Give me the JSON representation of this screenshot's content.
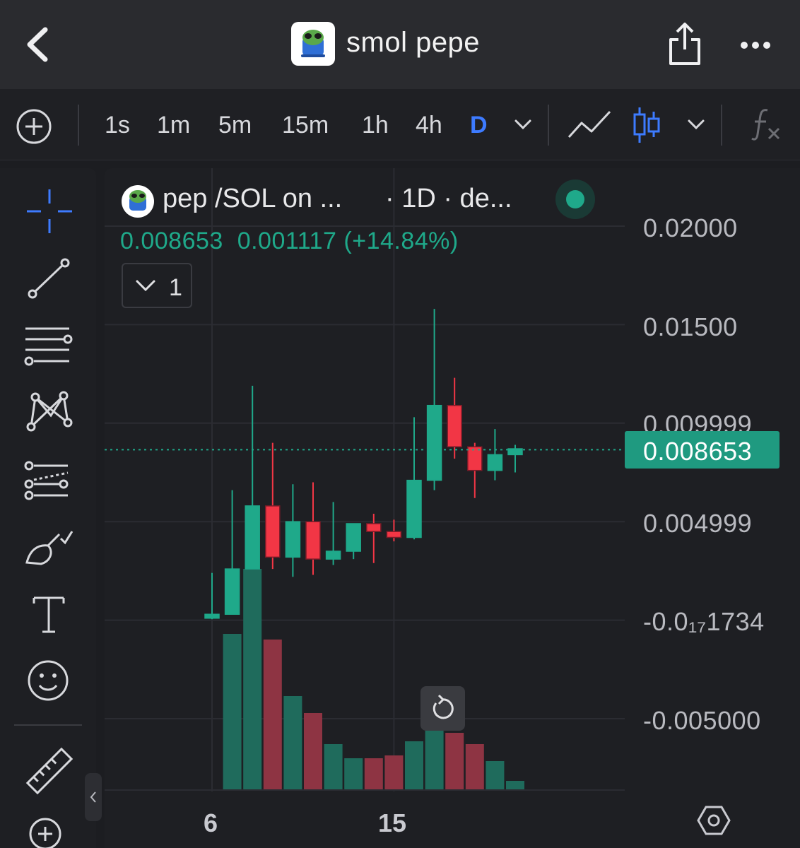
{
  "header": {
    "title": "smol pepe",
    "icons": [
      "back-chevron-icon",
      "token-logo",
      "share-icon",
      "more-icon"
    ]
  },
  "toolbar": {
    "timeframes": [
      "1s",
      "1m",
      "5m",
      "15m",
      "1h",
      "4h",
      "D"
    ],
    "active_timeframe": "D",
    "icons": [
      "add-circle-icon",
      "chevron-down-icon",
      "line-chart-icon",
      "candlestick-icon",
      "chevron-down-icon",
      "function-icon"
    ],
    "active_color": "#3d7bff"
  },
  "left_tools": [
    "crosshair-icon",
    "trend-line-icon",
    "fib-retracement-icon",
    "pattern-icon",
    "prediction-icon",
    "brush-icon",
    "text-icon",
    "emoji-icon",
    "ruler-icon",
    "zoom-in-icon"
  ],
  "legend": {
    "series_title": "pep /SOL on ...",
    "resolution": "· 1D · de...",
    "price_values": "0.008653  0.001117 (+14.84%)",
    "indicator_count": "1",
    "up_color": "#1fa98a",
    "down_color": "#f23645"
  },
  "price_axis": {
    "labels": [
      "0.02000",
      "0.01500",
      "0.009999",
      "0.004999",
      "-0.0₁₇1734",
      "-0.005000"
    ],
    "current_price": "0.008653"
  },
  "time_axis": {
    "labels": [
      "6",
      "15"
    ]
  },
  "chart_data": {
    "type": "candlestick",
    "x": [
      "5",
      "6",
      "7",
      "8",
      "9",
      "10",
      "11",
      "12",
      "13",
      "14",
      "15",
      "16",
      "17",
      "18",
      "19",
      "20"
    ],
    "series": [
      {
        "ohlc": [
          [
            0.0001,
            0.0024,
            5e-05,
            0.0003
          ],
          [
            0.0003,
            0.0066,
            0.0003,
            0.0026
          ],
          [
            0.0026,
            0.0119,
            0.0026,
            0.0058
          ],
          [
            0.0058,
            0.009,
            0.0026,
            0.0032
          ],
          [
            0.0032,
            0.0069,
            0.0022,
            0.005
          ],
          [
            0.005,
            0.007,
            0.0023,
            0.0031
          ],
          [
            0.0031,
            0.006,
            0.0028,
            0.0035
          ],
          [
            0.0035,
            0.0049,
            0.0031,
            0.0049
          ],
          [
            0.0049,
            0.0054,
            0.0029,
            0.0045
          ],
          [
            0.0045,
            0.0051,
            0.004,
            0.0042
          ],
          [
            0.0042,
            0.0103,
            0.0041,
            0.0071
          ],
          [
            0.0071,
            0.0158,
            0.0066,
            0.0109
          ],
          [
            0.0109,
            0.0123,
            0.0082,
            0.0088
          ],
          [
            0.0088,
            0.009,
            0.0062,
            0.0076
          ],
          [
            0.0076,
            0.0097,
            0.0071,
            0.0084
          ],
          [
            0.0084,
            0.0089,
            0.0075,
            0.0087
          ]
        ]
      },
      {
        "volume": [
          0,
          55,
          78,
          53,
          33,
          27,
          16,
          11,
          11,
          12,
          17,
          24,
          20,
          16,
          10,
          3
        ]
      }
    ],
    "ylim": [
      -0.0075,
      0.0215
    ]
  }
}
